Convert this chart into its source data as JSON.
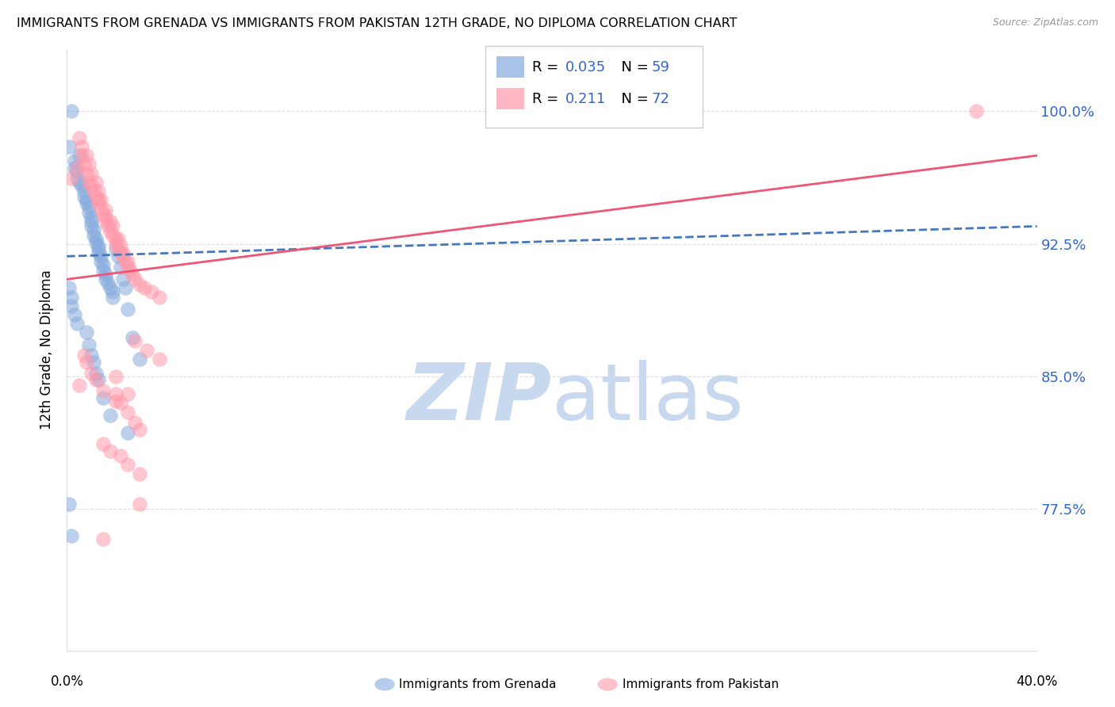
{
  "title": "IMMIGRANTS FROM GRENADA VS IMMIGRANTS FROM PAKISTAN 12TH GRADE, NO DIPLOMA CORRELATION CHART",
  "source": "Source: ZipAtlas.com",
  "ylabel": "12th Grade, No Diploma",
  "yticks": [
    0.775,
    0.85,
    0.925,
    1.0
  ],
  "ytick_labels": [
    "77.5%",
    "85.0%",
    "92.5%",
    "100.0%"
  ],
  "xlim": [
    0.0,
    0.4
  ],
  "ylim": [
    0.695,
    1.035
  ],
  "grenada_R": 0.035,
  "grenada_N": 59,
  "pakistan_R": 0.211,
  "pakistan_N": 72,
  "grenada_color": "#85AADD",
  "pakistan_color": "#FF99AA",
  "grenada_line_color": "#4477BB",
  "pakistan_line_color": "#EE5577",
  "watermark_zip": "ZIP",
  "watermark_atlas": "atlas",
  "watermark_color_zip": "#C8D8EE",
  "watermark_color_atlas": "#C8D8EE",
  "grenada_x": [
    0.001,
    0.002,
    0.003,
    0.003,
    0.004,
    0.004,
    0.005,
    0.005,
    0.006,
    0.007,
    0.007,
    0.008,
    0.008,
    0.009,
    0.009,
    0.01,
    0.01,
    0.01,
    0.011,
    0.011,
    0.012,
    0.012,
    0.013,
    0.013,
    0.013,
    0.014,
    0.014,
    0.015,
    0.015,
    0.016,
    0.016,
    0.017,
    0.018,
    0.019,
    0.019,
    0.02,
    0.021,
    0.022,
    0.023,
    0.024,
    0.025,
    0.027,
    0.03,
    0.001,
    0.002,
    0.002,
    0.003,
    0.004,
    0.008,
    0.009,
    0.01,
    0.011,
    0.012,
    0.013,
    0.015,
    0.018,
    0.025,
    0.001,
    0.002
  ],
  "grenada_y": [
    0.98,
    1.0,
    0.972,
    0.968,
    0.966,
    0.962,
    0.975,
    0.96,
    0.958,
    0.955,
    0.952,
    0.95,
    0.948,
    0.946,
    0.943,
    0.94,
    0.938,
    0.935,
    0.933,
    0.93,
    0.928,
    0.926,
    0.924,
    0.922,
    0.92,
    0.918,
    0.915,
    0.913,
    0.91,
    0.908,
    0.905,
    0.903,
    0.9,
    0.898,
    0.895,
    0.922,
    0.918,
    0.912,
    0.905,
    0.9,
    0.888,
    0.872,
    0.86,
    0.9,
    0.895,
    0.89,
    0.885,
    0.88,
    0.875,
    0.868,
    0.862,
    0.858,
    0.852,
    0.848,
    0.838,
    0.828,
    0.818,
    0.778,
    0.76
  ],
  "pakistan_x": [
    0.002,
    0.004,
    0.005,
    0.006,
    0.007,
    0.008,
    0.009,
    0.01,
    0.011,
    0.012,
    0.013,
    0.013,
    0.014,
    0.015,
    0.016,
    0.016,
    0.017,
    0.018,
    0.019,
    0.02,
    0.02,
    0.021,
    0.022,
    0.023,
    0.024,
    0.025,
    0.026,
    0.027,
    0.028,
    0.03,
    0.032,
    0.035,
    0.038,
    0.015,
    0.018,
    0.022,
    0.025,
    0.03,
    0.02,
    0.025,
    0.006,
    0.008,
    0.009,
    0.01,
    0.012,
    0.013,
    0.014,
    0.016,
    0.018,
    0.019,
    0.021,
    0.022,
    0.023,
    0.025,
    0.007,
    0.008,
    0.01,
    0.012,
    0.015,
    0.02,
    0.025,
    0.028,
    0.03,
    0.028,
    0.033,
    0.038,
    0.005,
    0.03,
    0.02,
    0.022,
    0.375,
    0.015
  ],
  "pakistan_y": [
    0.962,
    0.968,
    0.985,
    0.975,
    0.97,
    0.965,
    0.96,
    0.958,
    0.955,
    0.952,
    0.95,
    0.948,
    0.945,
    0.942,
    0.94,
    0.938,
    0.935,
    0.932,
    0.93,
    0.928,
    0.925,
    0.922,
    0.92,
    0.918,
    0.915,
    0.912,
    0.91,
    0.908,
    0.905,
    0.902,
    0.9,
    0.898,
    0.895,
    0.812,
    0.808,
    0.805,
    0.8,
    0.795,
    0.85,
    0.84,
    0.98,
    0.975,
    0.97,
    0.965,
    0.96,
    0.955,
    0.95,
    0.944,
    0.938,
    0.935,
    0.928,
    0.924,
    0.92,
    0.915,
    0.862,
    0.858,
    0.852,
    0.848,
    0.842,
    0.836,
    0.83,
    0.824,
    0.82,
    0.87,
    0.865,
    0.86,
    0.845,
    0.778,
    0.84,
    0.835,
    1.0,
    0.758
  ]
}
